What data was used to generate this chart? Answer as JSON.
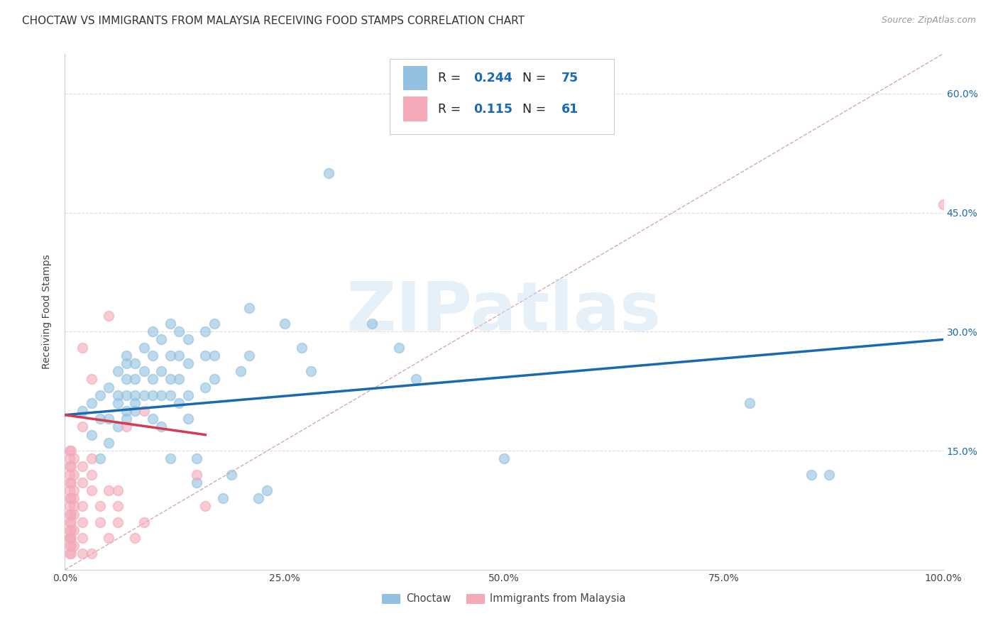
{
  "title": "CHOCTAW VS IMMIGRANTS FROM MALAYSIA RECEIVING FOOD STAMPS CORRELATION CHART",
  "source": "Source: ZipAtlas.com",
  "ylabel": "Receiving Food Stamps",
  "watermark": "ZIPatlas",
  "legend1_label": "Choctaw",
  "legend2_label": "Immigrants from Malaysia",
  "r1": 0.244,
  "n1": 75,
  "r2": 0.115,
  "n2": 61,
  "color1": "#92c0e0",
  "color2": "#f4a8b8",
  "line1_color": "#1a6ab0",
  "line2_color": "#d63a52",
  "diag_color": "#d0a0a8",
  "xlim": [
    0.0,
    1.0
  ],
  "ylim": [
    0.0,
    0.65
  ],
  "xticks": [
    0.0,
    0.25,
    0.5,
    0.75,
    1.0
  ],
  "yticks": [
    0.0,
    0.15,
    0.3,
    0.45,
    0.6
  ],
  "xtick_labels": [
    "0.0%",
    "25.0%",
    "50.0%",
    "75.0%",
    "100.0%"
  ],
  "ytick_labels": [
    "",
    "15.0%",
    "30.0%",
    "45.0%",
    "60.0%"
  ],
  "blue_line_x": [
    0.0,
    1.0
  ],
  "blue_line_y": [
    0.195,
    0.29
  ],
  "pink_line_x": [
    0.0,
    0.16
  ],
  "pink_line_y": [
    0.195,
    0.17
  ],
  "blue_points": [
    [
      0.02,
      0.2
    ],
    [
      0.03,
      0.17
    ],
    [
      0.03,
      0.21
    ],
    [
      0.04,
      0.22
    ],
    [
      0.04,
      0.19
    ],
    [
      0.04,
      0.14
    ],
    [
      0.05,
      0.23
    ],
    [
      0.05,
      0.19
    ],
    [
      0.05,
      0.16
    ],
    [
      0.06,
      0.25
    ],
    [
      0.06,
      0.22
    ],
    [
      0.06,
      0.21
    ],
    [
      0.06,
      0.18
    ],
    [
      0.07,
      0.27
    ],
    [
      0.07,
      0.26
    ],
    [
      0.07,
      0.24
    ],
    [
      0.07,
      0.22
    ],
    [
      0.07,
      0.2
    ],
    [
      0.07,
      0.19
    ],
    [
      0.08,
      0.26
    ],
    [
      0.08,
      0.24
    ],
    [
      0.08,
      0.22
    ],
    [
      0.08,
      0.21
    ],
    [
      0.08,
      0.2
    ],
    [
      0.09,
      0.28
    ],
    [
      0.09,
      0.25
    ],
    [
      0.09,
      0.22
    ],
    [
      0.1,
      0.3
    ],
    [
      0.1,
      0.27
    ],
    [
      0.1,
      0.24
    ],
    [
      0.1,
      0.22
    ],
    [
      0.1,
      0.19
    ],
    [
      0.11,
      0.29
    ],
    [
      0.11,
      0.25
    ],
    [
      0.11,
      0.22
    ],
    [
      0.11,
      0.18
    ],
    [
      0.12,
      0.31
    ],
    [
      0.12,
      0.27
    ],
    [
      0.12,
      0.24
    ],
    [
      0.12,
      0.22
    ],
    [
      0.12,
      0.14
    ],
    [
      0.13,
      0.3
    ],
    [
      0.13,
      0.27
    ],
    [
      0.13,
      0.24
    ],
    [
      0.13,
      0.21
    ],
    [
      0.14,
      0.29
    ],
    [
      0.14,
      0.26
    ],
    [
      0.14,
      0.22
    ],
    [
      0.14,
      0.19
    ],
    [
      0.15,
      0.14
    ],
    [
      0.15,
      0.11
    ],
    [
      0.16,
      0.3
    ],
    [
      0.16,
      0.27
    ],
    [
      0.16,
      0.23
    ],
    [
      0.17,
      0.31
    ],
    [
      0.17,
      0.27
    ],
    [
      0.17,
      0.24
    ],
    [
      0.18,
      0.09
    ],
    [
      0.19,
      0.12
    ],
    [
      0.2,
      0.25
    ],
    [
      0.21,
      0.33
    ],
    [
      0.21,
      0.27
    ],
    [
      0.22,
      0.09
    ],
    [
      0.23,
      0.1
    ],
    [
      0.25,
      0.31
    ],
    [
      0.27,
      0.28
    ],
    [
      0.28,
      0.25
    ],
    [
      0.3,
      0.5
    ],
    [
      0.35,
      0.31
    ],
    [
      0.38,
      0.28
    ],
    [
      0.4,
      0.24
    ],
    [
      0.5,
      0.14
    ],
    [
      0.78,
      0.21
    ],
    [
      0.85,
      0.12
    ],
    [
      0.87,
      0.12
    ]
  ],
  "pink_points": [
    [
      0.005,
      0.02
    ],
    [
      0.005,
      0.03
    ],
    [
      0.005,
      0.04
    ],
    [
      0.005,
      0.05
    ],
    [
      0.005,
      0.06
    ],
    [
      0.005,
      0.07
    ],
    [
      0.005,
      0.08
    ],
    [
      0.005,
      0.09
    ],
    [
      0.005,
      0.1
    ],
    [
      0.005,
      0.11
    ],
    [
      0.005,
      0.12
    ],
    [
      0.005,
      0.13
    ],
    [
      0.005,
      0.14
    ],
    [
      0.005,
      0.15
    ],
    [
      0.005,
      0.04
    ],
    [
      0.007,
      0.03
    ],
    [
      0.007,
      0.05
    ],
    [
      0.007,
      0.07
    ],
    [
      0.007,
      0.09
    ],
    [
      0.007,
      0.11
    ],
    [
      0.007,
      0.13
    ],
    [
      0.007,
      0.15
    ],
    [
      0.007,
      0.02
    ],
    [
      0.007,
      0.04
    ],
    [
      0.007,
      0.06
    ],
    [
      0.01,
      0.08
    ],
    [
      0.01,
      0.1
    ],
    [
      0.01,
      0.12
    ],
    [
      0.01,
      0.14
    ],
    [
      0.01,
      0.03
    ],
    [
      0.01,
      0.05
    ],
    [
      0.01,
      0.07
    ],
    [
      0.01,
      0.09
    ],
    [
      0.02,
      0.11
    ],
    [
      0.02,
      0.13
    ],
    [
      0.02,
      0.02
    ],
    [
      0.02,
      0.04
    ],
    [
      0.02,
      0.06
    ],
    [
      0.02,
      0.08
    ],
    [
      0.02,
      0.18
    ],
    [
      0.02,
      0.28
    ],
    [
      0.03,
      0.1
    ],
    [
      0.03,
      0.12
    ],
    [
      0.03,
      0.14
    ],
    [
      0.03,
      0.24
    ],
    [
      0.03,
      0.02
    ],
    [
      0.04,
      0.06
    ],
    [
      0.04,
      0.08
    ],
    [
      0.05,
      0.1
    ],
    [
      0.05,
      0.32
    ],
    [
      0.05,
      0.04
    ],
    [
      0.06,
      0.06
    ],
    [
      0.06,
      0.08
    ],
    [
      0.06,
      0.1
    ],
    [
      0.07,
      0.18
    ],
    [
      0.08,
      0.04
    ],
    [
      0.09,
      0.2
    ],
    [
      0.09,
      0.06
    ],
    [
      0.15,
      0.12
    ],
    [
      0.16,
      0.08
    ],
    [
      1.0,
      0.46
    ]
  ],
  "background_color": "#ffffff",
  "grid_color": "#dddddd",
  "title_fontsize": 11,
  "axis_label_fontsize": 10,
  "tick_fontsize": 10,
  "source_fontsize": 9,
  "watermark_fontsize": 70
}
